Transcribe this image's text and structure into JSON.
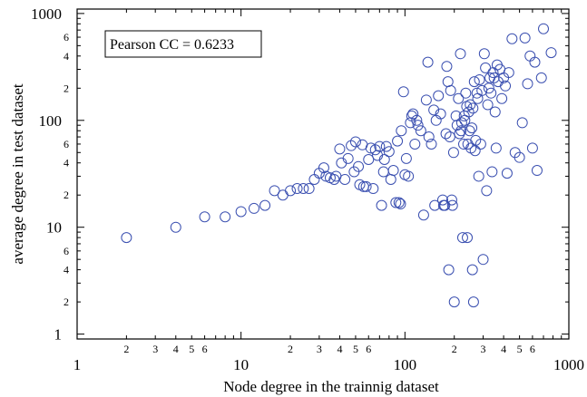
{
  "chart_data": {
    "type": "scatter",
    "xlabel": "Node degree in the trainnig dataset",
    "ylabel": "average degree in test dataset",
    "x_scale": "log",
    "y_scale": "log",
    "xlim": [
      1,
      1000
    ],
    "ylim": [
      0.9,
      1100
    ],
    "annotation": "Pearson CC = 0.6233",
    "grid": false,
    "marker": "open-circle",
    "marker_color": "#3a4fb0",
    "x_major_ticks": [
      {
        "value": 1,
        "label": "1"
      },
      {
        "value": 10,
        "label": "10"
      },
      {
        "value": 100,
        "label": "100"
      },
      {
        "value": 1000,
        "label": "1000"
      }
    ],
    "x_minor_labels": [
      {
        "value": 2,
        "label": "2"
      },
      {
        "value": 3,
        "label": "3"
      },
      {
        "value": 4,
        "label": "4"
      },
      {
        "value": 5,
        "label": "5"
      },
      {
        "value": 6,
        "label": "6"
      },
      {
        "value": 20,
        "label": "2"
      },
      {
        "value": 30,
        "label": "3"
      },
      {
        "value": 40,
        "label": "4"
      },
      {
        "value": 50,
        "label": "5"
      },
      {
        "value": 60,
        "label": "6"
      },
      {
        "value": 200,
        "label": "2"
      },
      {
        "value": 300,
        "label": "3"
      },
      {
        "value": 400,
        "label": "4"
      },
      {
        "value": 500,
        "label": "5"
      },
      {
        "value": 600,
        "label": "6"
      }
    ],
    "y_major_ticks": [
      {
        "value": 1,
        "label": "1"
      },
      {
        "value": 10,
        "label": "10"
      },
      {
        "value": 100,
        "label": "100"
      },
      {
        "value": 1000,
        "label": "1000"
      }
    ],
    "y_minor_labels": [
      {
        "value": 2,
        "label": "2"
      },
      {
        "value": 4,
        "label": "4"
      },
      {
        "value": 6,
        "label": "6"
      },
      {
        "value": 20,
        "label": "2"
      },
      {
        "value": 40,
        "label": "4"
      },
      {
        "value": 60,
        "label": "6"
      },
      {
        "value": 200,
        "label": "2"
      },
      {
        "value": 400,
        "label": "4"
      },
      {
        "value": 600,
        "label": "6"
      }
    ],
    "points": [
      [
        2,
        8
      ],
      [
        4,
        10
      ],
      [
        6,
        12.5
      ],
      [
        8,
        12.5
      ],
      [
        10,
        14
      ],
      [
        12,
        15
      ],
      [
        14,
        16
      ],
      [
        16,
        22
      ],
      [
        18,
        20
      ],
      [
        20,
        22
      ],
      [
        22,
        23
      ],
      [
        24,
        23
      ],
      [
        26,
        23
      ],
      [
        28,
        28
      ],
      [
        30,
        32
      ],
      [
        32,
        36
      ],
      [
        33,
        30
      ],
      [
        35,
        29
      ],
      [
        37,
        28
      ],
      [
        38,
        30
      ],
      [
        40,
        54
      ],
      [
        41,
        40
      ],
      [
        43,
        28
      ],
      [
        45,
        44
      ],
      [
        47,
        58
      ],
      [
        49,
        33
      ],
      [
        50,
        63
      ],
      [
        52,
        37
      ],
      [
        53,
        25
      ],
      [
        55,
        59
      ],
      [
        56,
        24
      ],
      [
        58,
        24
      ],
      [
        60,
        43
      ],
      [
        62,
        55
      ],
      [
        64,
        23
      ],
      [
        66,
        53
      ],
      [
        68,
        47
      ],
      [
        70,
        57
      ],
      [
        72,
        16
      ],
      [
        74,
        33
      ],
      [
        75,
        43
      ],
      [
        77,
        57
      ],
      [
        80,
        51
      ],
      [
        82,
        28
      ],
      [
        85,
        34
      ],
      [
        88,
        17
      ],
      [
        90,
        64
      ],
      [
        92,
        17
      ],
      [
        94,
        16.5
      ],
      [
        95,
        80
      ],
      [
        98,
        185
      ],
      [
        100,
        31
      ],
      [
        102,
        44
      ],
      [
        105,
        30
      ],
      [
        108,
        95
      ],
      [
        110,
        110
      ],
      [
        112,
        115
      ],
      [
        115,
        60
      ],
      [
        118,
        100
      ],
      [
        120,
        90
      ],
      [
        125,
        80
      ],
      [
        130,
        13
      ],
      [
        135,
        155
      ],
      [
        138,
        350
      ],
      [
        140,
        70
      ],
      [
        145,
        60
      ],
      [
        150,
        125
      ],
      [
        152,
        16
      ],
      [
        155,
        100
      ],
      [
        160,
        170
      ],
      [
        165,
        115
      ],
      [
        170,
        18
      ],
      [
        172,
        16
      ],
      [
        175,
        16
      ],
      [
        178,
        75
      ],
      [
        180,
        320
      ],
      [
        183,
        230
      ],
      [
        185,
        4
      ],
      [
        188,
        70
      ],
      [
        190,
        190
      ],
      [
        193,
        18
      ],
      [
        195,
        16
      ],
      [
        198,
        50
      ],
      [
        200,
        2
      ],
      [
        205,
        110
      ],
      [
        208,
        90
      ],
      [
        212,
        160
      ],
      [
        215,
        75
      ],
      [
        218,
        420
      ],
      [
        220,
        80
      ],
      [
        222,
        95
      ],
      [
        225,
        8
      ],
      [
        228,
        60
      ],
      [
        230,
        110
      ],
      [
        232,
        100
      ],
      [
        235,
        180
      ],
      [
        238,
        135
      ],
      [
        240,
        8
      ],
      [
        242,
        60
      ],
      [
        245,
        120
      ],
      [
        248,
        80
      ],
      [
        250,
        140
      ],
      [
        253,
        55
      ],
      [
        256,
        85
      ],
      [
        258,
        4
      ],
      [
        260,
        130
      ],
      [
        262,
        2
      ],
      [
        265,
        230
      ],
      [
        268,
        52
      ],
      [
        270,
        65
      ],
      [
        275,
        180
      ],
      [
        278,
        160
      ],
      [
        282,
        30
      ],
      [
        285,
        240
      ],
      [
        290,
        60
      ],
      [
        295,
        190
      ],
      [
        300,
        5
      ],
      [
        305,
        420
      ],
      [
        310,
        310
      ],
      [
        315,
        22
      ],
      [
        320,
        140
      ],
      [
        325,
        200
      ],
      [
        330,
        250
      ],
      [
        335,
        180
      ],
      [
        340,
        33
      ],
      [
        345,
        280
      ],
      [
        350,
        250
      ],
      [
        355,
        120
      ],
      [
        360,
        55
      ],
      [
        365,
        330
      ],
      [
        370,
        230
      ],
      [
        380,
        300
      ],
      [
        390,
        160
      ],
      [
        400,
        250
      ],
      [
        410,
        210
      ],
      [
        420,
        32
      ],
      [
        430,
        280
      ],
      [
        450,
        580
      ],
      [
        470,
        50
      ],
      [
        500,
        45
      ],
      [
        520,
        95
      ],
      [
        540,
        590
      ],
      [
        560,
        220
      ],
      [
        580,
        400
      ],
      [
        600,
        55
      ],
      [
        620,
        350
      ],
      [
        640,
        34
      ],
      [
        680,
        250
      ],
      [
        700,
        720
      ],
      [
        780,
        430
      ]
    ]
  }
}
